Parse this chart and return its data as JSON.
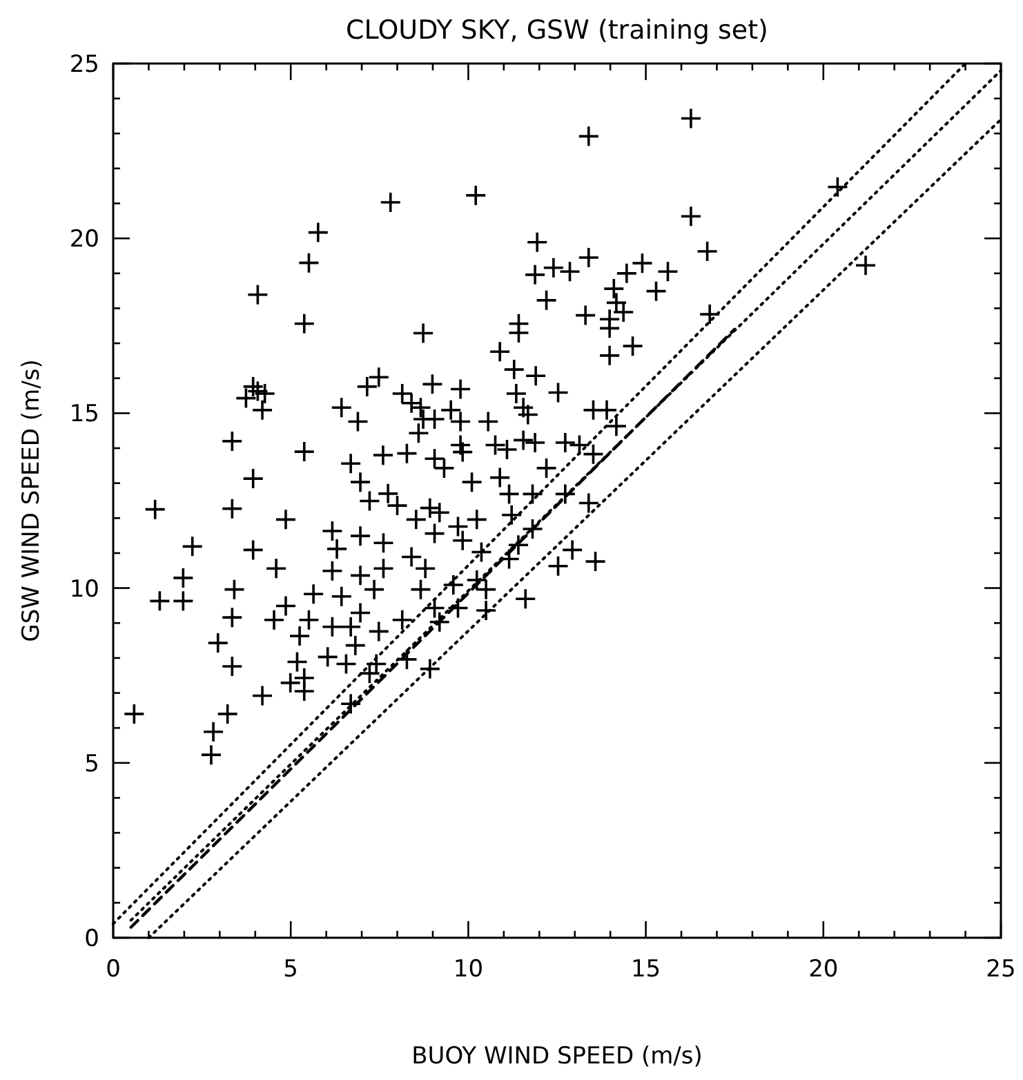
{
  "chart_data": {
    "type": "scatter",
    "title": "CLOUDY SKY, GSW (training set)",
    "xlabel": "BUOY WIND SPEED (m/s)",
    "ylabel": "GSW WIND SPEED (m/s)",
    "grid": false,
    "xlim": [
      0,
      25
    ],
    "ylim": [
      0,
      25
    ],
    "xticks": [
      0,
      {
        "value": 1,
        "label": null
      },
      {
        "value": 2,
        "label": null
      },
      {
        "value": 3,
        "label": null
      },
      {
        "value": 4,
        "label": null
      },
      5,
      {
        "value": 6,
        "label": null
      },
      {
        "value": 7,
        "label": null
      },
      {
        "value": 8,
        "label": null
      },
      {
        "value": 9,
        "label": null
      },
      10,
      {
        "value": 11,
        "label": null
      },
      {
        "value": 12,
        "label": null
      },
      {
        "value": 13,
        "label": null
      },
      {
        "value": 14,
        "label": null
      },
      15,
      {
        "value": 16,
        "label": null
      },
      {
        "value": 17,
        "label": null
      },
      {
        "value": 18,
        "label": null
      },
      {
        "value": 19,
        "label": null
      },
      20,
      {
        "value": 21,
        "label": null
      },
      {
        "value": 22,
        "label": null
      },
      {
        "value": 23,
        "label": null
      },
      {
        "value": 24,
        "label": null
      },
      25
    ],
    "yticks": [
      0,
      {
        "value": 1,
        "label": null
      },
      {
        "value": 2,
        "label": null
      },
      {
        "value": 3,
        "label": null
      },
      {
        "value": 4,
        "label": null
      },
      5,
      {
        "value": 6,
        "label": null
      },
      {
        "value": 7,
        "label": null
      },
      {
        "value": 8,
        "label": null
      },
      {
        "value": 9,
        "label": null
      },
      10,
      {
        "value": 11,
        "label": null
      },
      {
        "value": 12,
        "label": null
      },
      {
        "value": 13,
        "label": null
      },
      {
        "value": 14,
        "label": null
      },
      15,
      {
        "value": 16,
        "label": null
      },
      {
        "value": 17,
        "label": null
      },
      {
        "value": 18,
        "label": null
      },
      {
        "value": 19,
        "label": null
      },
      20,
      {
        "value": 21,
        "label": null
      },
      {
        "value": 22,
        "label": null
      },
      {
        "value": 23,
        "label": null
      },
      {
        "value": 24,
        "label": null
      },
      25
    ],
    "series": [
      {
        "color": "#000000",
        "marker": "cross",
        "x": [
          3.35,
          5.38,
          6.69,
          7.6,
          8.27,
          9.05,
          3.94,
          6.96,
          7.74,
          7.22,
          8.0,
          8.92,
          1.18,
          3.35,
          4.86,
          8.53,
          9.05,
          6.17,
          6.96,
          7.61,
          2.23,
          3.94,
          6.3,
          8.4,
          4.59,
          6.17,
          6.96,
          7.61,
          8.79,
          1.97,
          3.41,
          5.64,
          6.43,
          7.35,
          8.66,
          1.31,
          1.97,
          4.86,
          9.05,
          6.96,
          3.35,
          4.53,
          5.51,
          8.14,
          6.17,
          6.69,
          5.25,
          7.48,
          2.95,
          6.82,
          6.04,
          5.18,
          6.56,
          7.41,
          8.27,
          8.92,
          3.35,
          7.22,
          5.38,
          4.99,
          5.38,
          4.2,
          6.69,
          0.59,
          3.22,
          2.82,
          2.76,
          7.81,
          5.77,
          5.51,
          4.07,
          5.38,
          8.73,
          7.48,
          7.15,
          8.99,
          3.94,
          4.07,
          4.27,
          3.74,
          4.2,
          6.43,
          6.89,
          8.14,
          8.4,
          8.66,
          8.73,
          9.05,
          8.6,
          16.27,
          13.39,
          10.21,
          16.27,
          16.73,
          11.94,
          13.39,
          14.9,
          15.62,
          14.46,
          11.88,
          12.4,
          12.86,
          15.29,
          14.1,
          12.2,
          14.17,
          14.37,
          16.8,
          13.3,
          13.98,
          11.42,
          13.98,
          11.42,
          14.63,
          13.98,
          10.89,
          11.29,
          11.9,
          12.53,
          9.78,
          11.35,
          11.55,
          11.68,
          13.52,
          13.9,
          14.17,
          9.51,
          9.78,
          10.56,
          9.78,
          10.76,
          11.55,
          12.73,
          20.4,
          21.19,
          9.84,
          11.09,
          11.88,
          13.13,
          13.52,
          12.2,
          9.32,
          10.1,
          10.89,
          11.15,
          11.81,
          12.73,
          13.39,
          9.19,
          10.24,
          11.22,
          9.71,
          11.81,
          9.84,
          11.41,
          10.37,
          11.15,
          12.93,
          12.53,
          13.58,
          10.24,
          9.58,
          10.5,
          11.61,
          9.71,
          10.5,
          9.19
        ],
        "values": [
          14.2,
          13.9,
          13.56,
          13.8,
          13.85,
          13.7,
          13.13,
          13.03,
          12.7,
          12.49,
          12.36,
          12.29,
          12.25,
          12.27,
          11.96,
          11.96,
          11.56,
          11.63,
          11.49,
          11.29,
          11.19,
          11.09,
          11.12,
          10.89,
          10.56,
          10.49,
          10.36,
          10.56,
          10.56,
          10.29,
          9.96,
          9.83,
          9.76,
          9.96,
          9.96,
          9.63,
          9.63,
          9.49,
          9.43,
          9.29,
          9.16,
          9.09,
          9.09,
          9.09,
          8.89,
          8.89,
          8.63,
          8.76,
          8.43,
          8.36,
          8.03,
          7.89,
          7.83,
          7.83,
          7.96,
          7.69,
          7.76,
          7.56,
          7.43,
          7.29,
          7.05,
          6.92,
          6.69,
          6.4,
          6.4,
          5.89,
          5.23,
          21.03,
          20.17,
          19.3,
          18.39,
          17.56,
          17.29,
          16.03,
          15.76,
          15.83,
          15.76,
          15.63,
          15.56,
          15.43,
          15.09,
          15.16,
          14.76,
          15.56,
          15.29,
          15.16,
          14.83,
          14.83,
          14.43,
          23.43,
          22.92,
          21.23,
          20.63,
          19.63,
          19.89,
          19.45,
          19.29,
          19.05,
          19.0,
          18.96,
          19.16,
          19.05,
          18.49,
          18.56,
          18.23,
          18.16,
          17.89,
          17.83,
          17.8,
          17.69,
          17.56,
          17.43,
          17.3,
          16.92,
          16.65,
          16.76,
          16.25,
          16.07,
          15.59,
          15.69,
          15.56,
          15.16,
          14.96,
          15.09,
          15.09,
          14.63,
          15.09,
          14.76,
          14.76,
          14.09,
          14.09,
          14.23,
          14.16,
          21.47,
          19.23,
          13.89,
          13.96,
          14.16,
          14.09,
          13.83,
          13.43,
          13.43,
          13.03,
          13.16,
          12.69,
          12.69,
          12.69,
          12.43,
          12.16,
          11.96,
          12.09,
          11.76,
          11.69,
          11.36,
          11.23,
          11.03,
          10.83,
          11.09,
          10.63,
          10.76,
          10.23,
          10.09,
          9.96,
          9.69,
          9.43,
          9.36,
          9.03
        ]
      },
      {
        "type": "line",
        "color": "#000000",
        "line_style": "dotted",
        "x": [
          0,
          24
        ],
        "values": [
          0.4,
          25
        ]
      },
      {
        "type": "line",
        "color": "#000000",
        "line_style": "dotted",
        "x": [
          0.5,
          25
        ],
        "values": [
          0.5,
          24.8
        ]
      },
      {
        "type": "line",
        "color": "#000000",
        "line_style": "dotted",
        "x": [
          1,
          25
        ],
        "values": [
          0,
          23.4
        ]
      },
      {
        "type": "line",
        "color": "#000000",
        "line_style": "dashed",
        "x": [
          0.5,
          17.5
        ],
        "values": [
          0.3,
          17.4
        ]
      }
    ]
  }
}
